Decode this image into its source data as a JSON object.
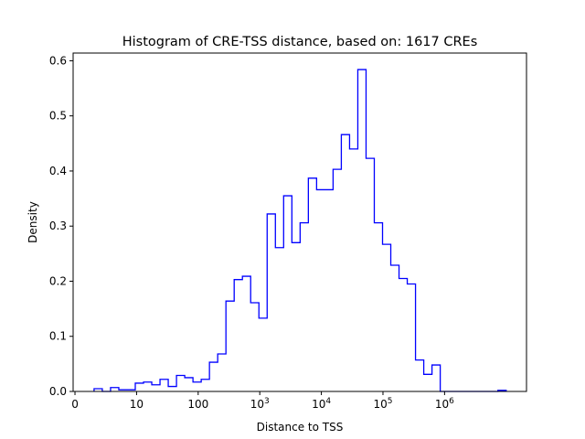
{
  "chart_data": {
    "type": "bar",
    "title": "Histogram of CRE-TSS distance, based on: 1617 CREs",
    "xlabel": "Distance to TSS",
    "ylabel": "Density",
    "xscale": "log10",
    "xlim_log10": [
      -0.03,
      7.33
    ],
    "ylim": [
      0,
      0.614
    ],
    "bin_start_log10": 0.31,
    "bin_width_log10": 0.1338,
    "values": [
      0.005,
      0,
      0.007,
      0.003,
      0.003,
      0.015,
      0.017,
      0.012,
      0.022,
      0.009,
      0.029,
      0.025,
      0.017,
      0.022,
      0.053,
      0.068,
      0.164,
      0.203,
      0.209,
      0.161,
      0.133,
      0.322,
      0.261,
      0.355,
      0.27,
      0.306,
      0.387,
      0.366,
      0.366,
      0.403,
      0.466,
      0.44,
      0.584,
      0.423,
      0.306,
      0.267,
      0.229,
      0.205,
      0.195,
      0.057,
      0.031,
      0.048,
      0,
      0,
      0,
      0,
      0,
      0,
      0,
      0.002
    ],
    "color": "#0000ff",
    "xticks": [
      {
        "pos": 0,
        "base": "0",
        "exp": ""
      },
      {
        "pos": 1,
        "base": "10",
        "exp": ""
      },
      {
        "pos": 2,
        "base": "100",
        "exp": ""
      },
      {
        "pos": 3,
        "base": "10",
        "exp": "3"
      },
      {
        "pos": 4,
        "base": "10",
        "exp": "4"
      },
      {
        "pos": 5,
        "base": "10",
        "exp": "5"
      },
      {
        "pos": 6,
        "base": "10",
        "exp": "6"
      }
    ],
    "yticks": [
      "0.0",
      "0.1",
      "0.2",
      "0.3",
      "0.4",
      "0.5",
      "0.6"
    ]
  }
}
